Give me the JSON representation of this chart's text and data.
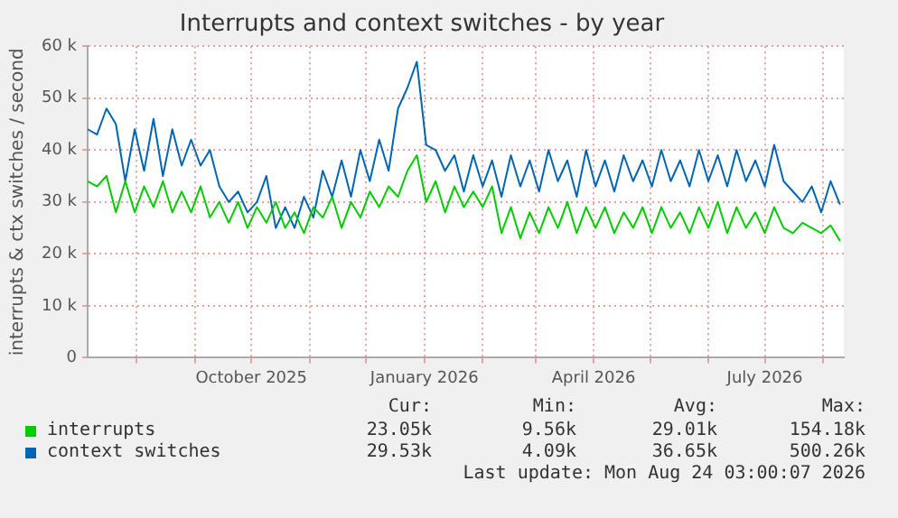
{
  "chart_data": {
    "type": "line",
    "title": "Interrupts and context switches - by year",
    "ylabel": "interrupts & ctx switches / second",
    "x": [
      "2025-07-06",
      "2025-07-11",
      "2025-07-16",
      "2025-07-21",
      "2025-07-26",
      "2025-07-31",
      "2025-08-05",
      "2025-08-10",
      "2025-08-15",
      "2025-08-20",
      "2025-08-25",
      "2025-08-30",
      "2025-09-04",
      "2025-09-09",
      "2025-09-14",
      "2025-09-19",
      "2025-09-24",
      "2025-09-29",
      "2025-10-04",
      "2025-10-09",
      "2025-10-14",
      "2025-10-19",
      "2025-10-24",
      "2025-10-29",
      "2025-11-03",
      "2025-11-08",
      "2025-11-13",
      "2025-11-18",
      "2025-11-23",
      "2025-11-28",
      "2025-12-03",
      "2025-12-08",
      "2025-12-13",
      "2025-12-18",
      "2025-12-23",
      "2025-12-28",
      "2026-01-02",
      "2026-01-07",
      "2026-01-12",
      "2026-01-17",
      "2026-01-22",
      "2026-01-27",
      "2026-02-01",
      "2026-02-06",
      "2026-02-11",
      "2026-02-16",
      "2026-02-21",
      "2026-02-26",
      "2026-03-03",
      "2026-03-08",
      "2026-03-13",
      "2026-03-18",
      "2026-03-23",
      "2026-03-28",
      "2026-04-02",
      "2026-04-07",
      "2026-04-12",
      "2026-04-17",
      "2026-04-22",
      "2026-04-27",
      "2026-05-02",
      "2026-05-07",
      "2026-05-12",
      "2026-05-17",
      "2026-05-22",
      "2026-05-27",
      "2026-06-01",
      "2026-06-06",
      "2026-06-11",
      "2026-06-16",
      "2026-06-21",
      "2026-06-26",
      "2026-07-01",
      "2026-07-06",
      "2026-07-11",
      "2026-07-16",
      "2026-07-21",
      "2026-07-26",
      "2026-07-31",
      "2026-08-05",
      "2026-08-10"
    ],
    "series": [
      {
        "name": "interrupts",
        "color": "#00cc00",
        "values": [
          34000,
          33000,
          35000,
          28000,
          34000,
          28000,
          33000,
          29000,
          34000,
          28000,
          32000,
          28000,
          33000,
          27000,
          30000,
          26000,
          30000,
          25000,
          29000,
          26000,
          30000,
          25000,
          28000,
          24000,
          29000,
          27000,
          31000,
          25000,
          30000,
          27000,
          32000,
          29000,
          33000,
          31000,
          36000,
          39000,
          30000,
          34000,
          28000,
          33000,
          29000,
          32000,
          29000,
          33000,
          24000,
          29000,
          23000,
          28000,
          24000,
          29000,
          25000,
          30000,
          24000,
          29000,
          25000,
          29000,
          24000,
          28000,
          25000,
          29000,
          24000,
          29000,
          25000,
          28000,
          24000,
          29000,
          25000,
          30000,
          24000,
          29000,
          25000,
          28000,
          24000,
          29000,
          25000,
          24000,
          26000,
          25000,
          24000,
          25500,
          22500
        ]
      },
      {
        "name": "context switches",
        "color": "#0066b3",
        "values": [
          44000,
          43000,
          48000,
          45000,
          34000,
          44000,
          36000,
          46000,
          35000,
          44000,
          37000,
          42000,
          37000,
          40000,
          33000,
          30000,
          32000,
          28000,
          30000,
          35000,
          25000,
          29000,
          25000,
          31000,
          27000,
          36000,
          31000,
          38000,
          31000,
          40000,
          34000,
          42000,
          36000,
          48000,
          52000,
          57000,
          41000,
          40000,
          36000,
          39000,
          32000,
          39000,
          33000,
          38000,
          31000,
          39000,
          33000,
          38000,
          32000,
          40000,
          34000,
          38000,
          31000,
          40000,
          33000,
          38000,
          32000,
          39000,
          34000,
          38000,
          33000,
          40000,
          34000,
          38000,
          33000,
          40000,
          34000,
          39000,
          33000,
          40000,
          34000,
          38000,
          33000,
          41000,
          34000,
          32000,
          30000,
          33000,
          28000,
          34000,
          29500
        ]
      }
    ],
    "xlim": [
      "2025-07-06",
      "2026-08-12"
    ],
    "xticks": [
      {
        "value": "2025-08-01",
        "label": null
      },
      {
        "value": "2025-09-01",
        "label": null
      },
      {
        "value": "2025-10-01",
        "label": "October 2025"
      },
      {
        "value": "2025-11-01",
        "label": null
      },
      {
        "value": "2025-12-01",
        "label": null
      },
      {
        "value": "2026-01-01",
        "label": "January 2026"
      },
      {
        "value": "2026-02-01",
        "label": null
      },
      {
        "value": "2026-03-01",
        "label": null
      },
      {
        "value": "2026-04-01",
        "label": "April 2026"
      },
      {
        "value": "2026-05-01",
        "label": null
      },
      {
        "value": "2026-06-01",
        "label": null
      },
      {
        "value": "2026-07-01",
        "label": "July 2026"
      },
      {
        "value": "2026-08-01",
        "label": null
      }
    ],
    "ylim": [
      0,
      60000
    ],
    "yticks": [
      0,
      {
        "value": 10000,
        "label": "10 k"
      },
      {
        "value": 20000,
        "label": "20 k"
      },
      {
        "value": 30000,
        "label": "30 k"
      },
      {
        "value": 40000,
        "label": "40 k"
      },
      {
        "value": 50000,
        "label": "50 k"
      },
      {
        "value": 60000,
        "label": "60 k"
      }
    ],
    "grid": true,
    "legend": "bottom",
    "marker": "none",
    "line_style": "solid",
    "annotations": [
      "Cur:",
      "Min:",
      "Avg:",
      "Max:",
      "23.05k",
      "9.56k",
      "29.01k",
      "154.18k",
      "29.53k",
      "4.09k",
      "36.65k",
      "500.26k",
      "Last update: Mon Aug 24 03:00:07 2026"
    ]
  }
}
